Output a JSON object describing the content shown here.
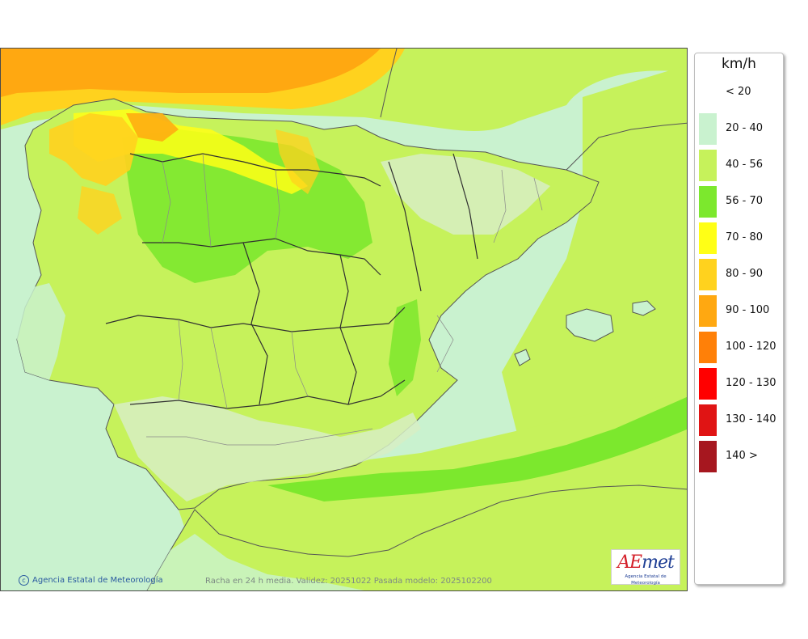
{
  "legend": {
    "unit": "km/h",
    "items": [
      {
        "label": "< 20",
        "color": "#ffffff"
      },
      {
        "label": "20 - 40",
        "color": "#c9f2cf"
      },
      {
        "label": "40 - 56",
        "color": "#c6f25b"
      },
      {
        "label": "56 - 70",
        "color": "#7ce82d"
      },
      {
        "label": "70 - 80",
        "color": "#ffff16"
      },
      {
        "label": "80 - 90",
        "color": "#ffd21e"
      },
      {
        "label": "90 - 100",
        "color": "#ffa811"
      },
      {
        "label": "100 - 120",
        "color": "#ff8008"
      },
      {
        "label": "120 - 130",
        "color": "#ff0000"
      },
      {
        "label": "130 - 140",
        "color": "#e01414"
      },
      {
        "label": "140 >",
        "color": "#a6171f"
      }
    ]
  },
  "map": {
    "credit": "Agencia Estatal de Meteorología",
    "caption": "Racha en 24 h media. Validez: 20251022 Pasada modelo: 2025102200",
    "logo": {
      "word_a": "AE",
      "word_b": "met",
      "subtitle": "Agencia Estatal de Meteorología"
    }
  }
}
